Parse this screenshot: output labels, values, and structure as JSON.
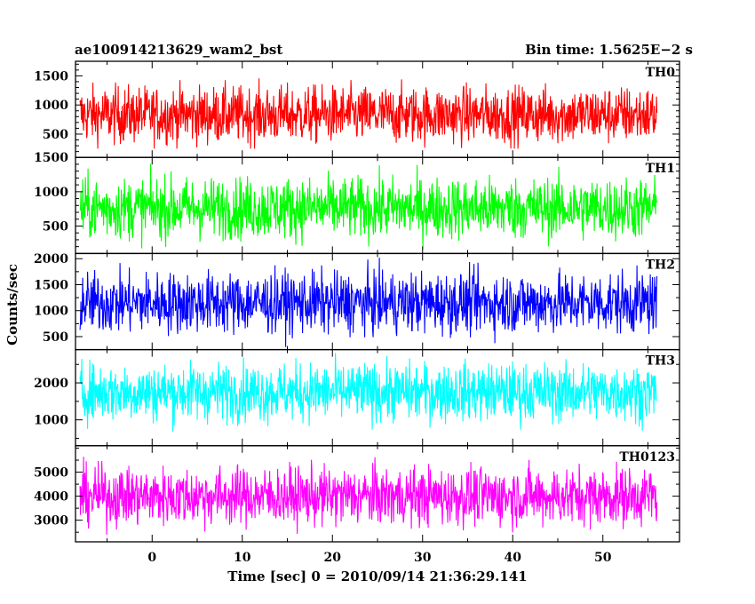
{
  "chart_data": {
    "type": "line",
    "title_left": "ae100914213629_wam2_bst",
    "title_right": "Bin time: 1.5625E−2 s",
    "xlabel": "Time [sec] 0 = 2010/09/14 21:36:29.141",
    "ylabel": "Counts/sec",
    "xlim": [
      -8.5,
      58.5
    ],
    "x_range_data": [
      -8,
      56
    ],
    "xticks": [
      0,
      10,
      20,
      30,
      40,
      50
    ],
    "grid": false,
    "panels": [
      {
        "name": "TH0",
        "color": "#ff0000",
        "ylim": [
          100,
          1750
        ],
        "yticks": [
          500,
          1000,
          1500
        ],
        "approx_min": 250,
        "approx_max": 1750,
        "approx_mean": 830
      },
      {
        "name": "TH1",
        "color": "#00ff00",
        "ylim": [
          100,
          1500
        ],
        "yticks": [
          500,
          1000,
          1500
        ],
        "approx_min": 130,
        "approx_max": 1500,
        "approx_mean": 760
      },
      {
        "name": "TH2",
        "color": "#0000ff",
        "ylim": [
          250,
          2100
        ],
        "yticks": [
          500,
          1000,
          1500,
          2000
        ],
        "approx_min": 300,
        "approx_max": 2100,
        "approx_mean": 1150
      },
      {
        "name": "TH3",
        "color": "#00ffff",
        "ylim": [
          300,
          2900
        ],
        "yticks": [
          1000,
          2000
        ],
        "approx_min": 500,
        "approx_max": 2900,
        "approx_mean": 1750
      },
      {
        "name": "TH0123",
        "color": "#ff00ff",
        "ylim": [
          2100,
          6100
        ],
        "yticks": [
          3000,
          4000,
          5000
        ],
        "approx_min": 2200,
        "approx_max": 5900,
        "approx_mean": 4000
      }
    ]
  }
}
